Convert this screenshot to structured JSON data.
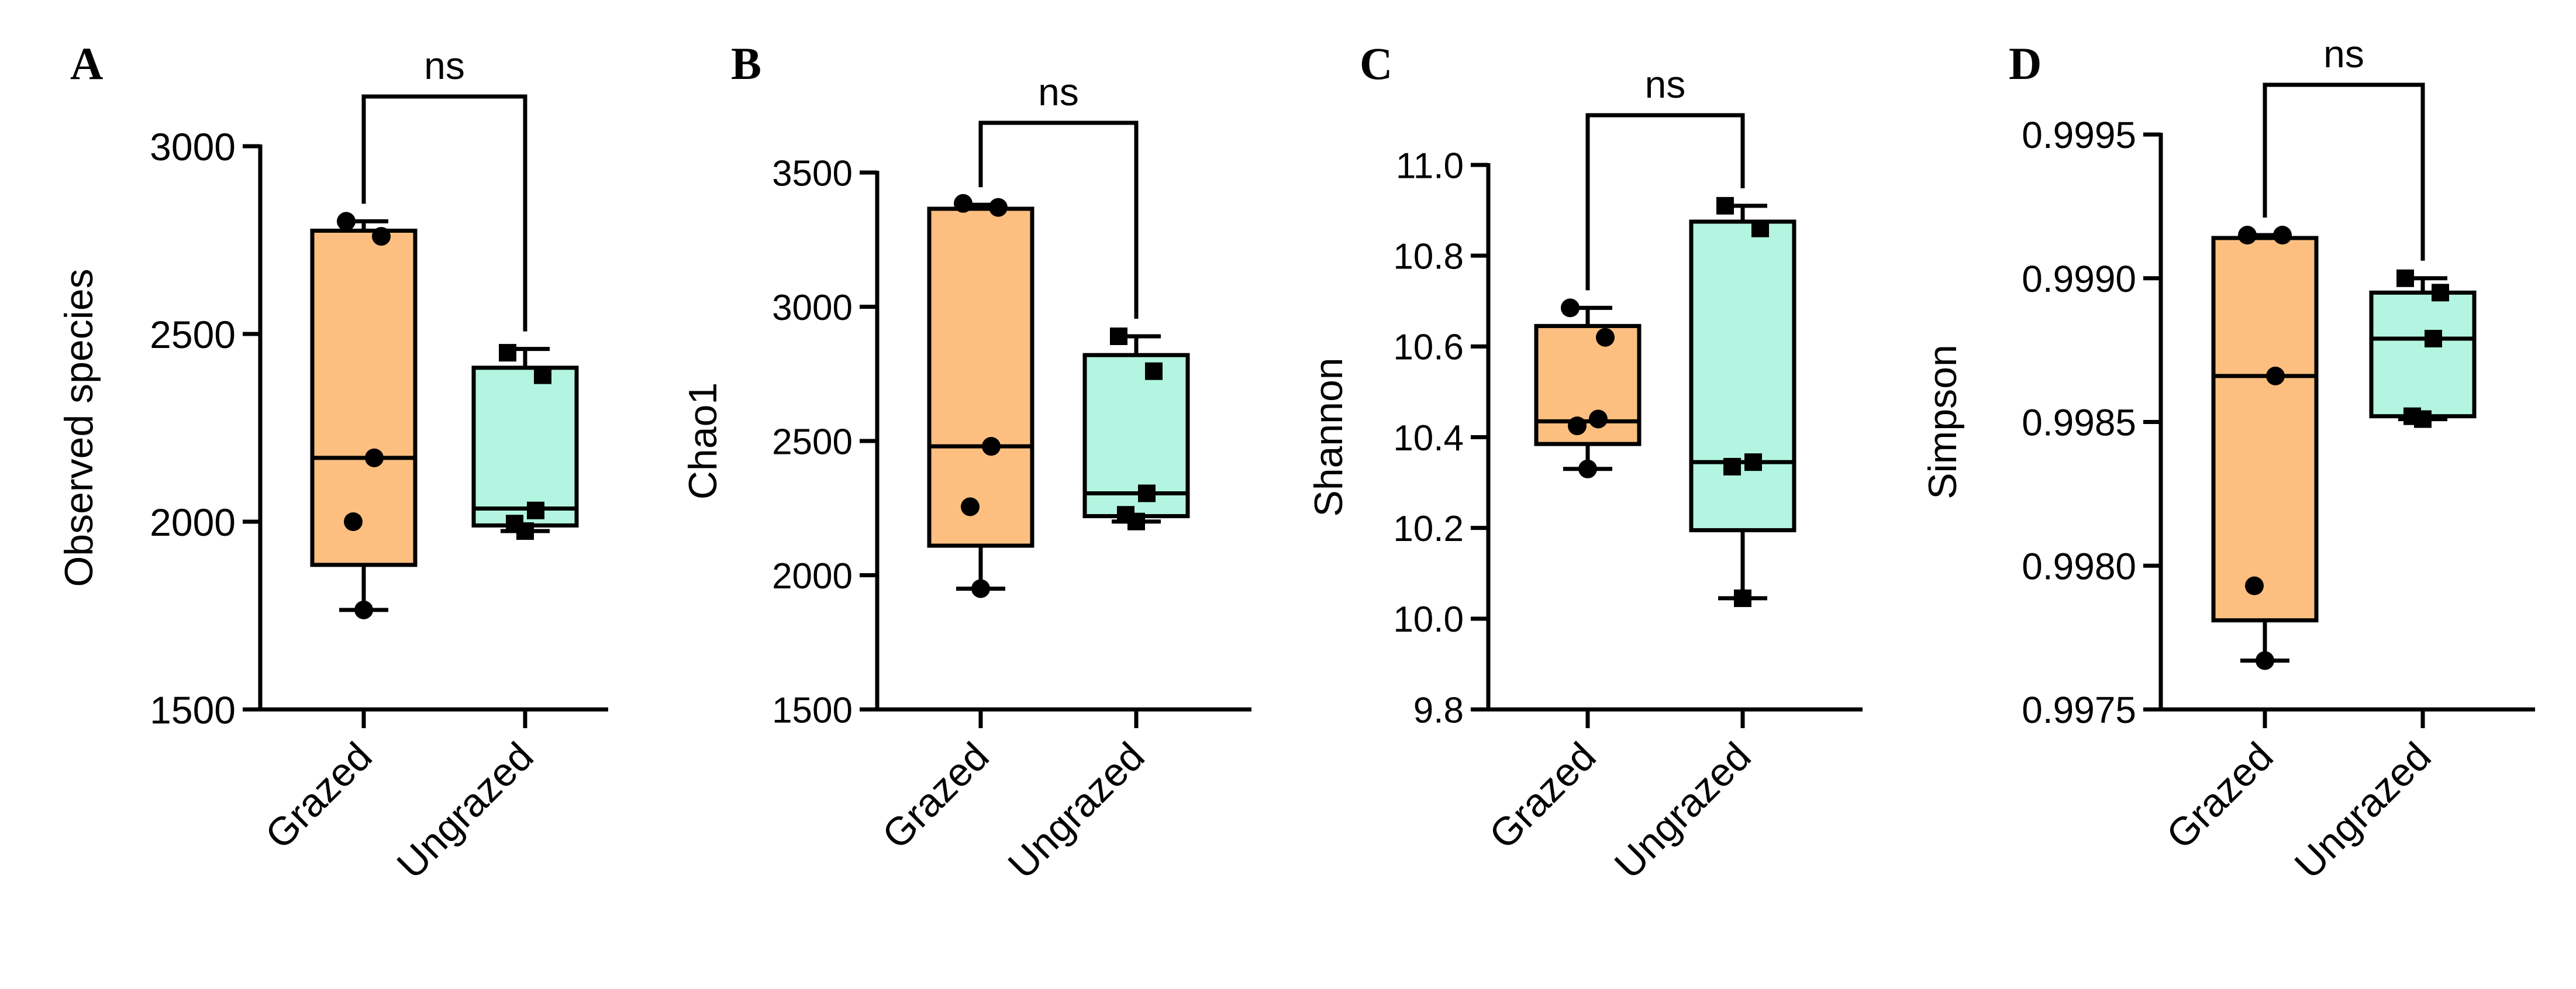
{
  "chart_data": [
    {
      "type": "box",
      "panel_label": "A",
      "ylabel": "Observed species",
      "categories": [
        "Grazed",
        "Ungrazed"
      ],
      "ylim": [
        1500,
        3000
      ],
      "yticks": [
        1500,
        2000,
        2500,
        3000
      ],
      "ytick_labels": [
        "1500",
        "2000",
        "2500",
        "3000"
      ],
      "significance": "ns",
      "groups": [
        {
          "name": "Grazed",
          "color": "#FDBF80",
          "min": 1765,
          "q1": 1885,
          "median": 2170,
          "q3": 2775,
          "max": 2800,
          "points": [
            1765,
            2000,
            2170,
            2760,
            2800
          ],
          "marker": "circle"
        },
        {
          "name": "Ungrazed",
          "color": "#B3F5E0",
          "min": 1975,
          "q1": 1990,
          "median": 2035,
          "q3": 2410,
          "max": 2460,
          "points": [
            1975,
            1995,
            2030,
            2390,
            2450
          ],
          "marker": "square"
        }
      ]
    },
    {
      "type": "box",
      "panel_label": "B",
      "ylabel": "Chao1",
      "categories": [
        "Grazed",
        "Ungrazed"
      ],
      "ylim": [
        1500,
        3500
      ],
      "yticks": [
        1500,
        2000,
        2500,
        3000,
        3500
      ],
      "ytick_labels": [
        "1500",
        "2000",
        "2500",
        "3000",
        "3500"
      ],
      "significance": "ns",
      "groups": [
        {
          "name": "Grazed",
          "color": "#FDBF80",
          "min": 1950,
          "q1": 2110,
          "median": 2480,
          "q3": 3365,
          "max": 3380,
          "points": [
            1950,
            2255,
            2480,
            3370,
            3385
          ],
          "marker": "circle"
        },
        {
          "name": "Ungrazed",
          "color": "#B3F5E0",
          "min": 2200,
          "q1": 2220,
          "median": 2305,
          "q3": 2820,
          "max": 2890,
          "points": [
            2200,
            2225,
            2305,
            2760,
            2890
          ],
          "marker": "square"
        }
      ]
    },
    {
      "type": "box",
      "panel_label": "C",
      "ylabel": "Shannon",
      "categories": [
        "Grazed",
        "Ungrazed"
      ],
      "ylim": [
        9.8,
        11.0
      ],
      "yticks": [
        9.8,
        10.0,
        10.2,
        10.4,
        10.6,
        10.8,
        11.0
      ],
      "ytick_labels": [
        "9.8",
        "10.0",
        "10.2",
        "10.4",
        "10.6",
        "10.8",
        "11.0"
      ],
      "significance": "ns",
      "groups": [
        {
          "name": "Grazed",
          "color": "#FDBF80",
          "min": 10.33,
          "q1": 10.385,
          "median": 10.435,
          "q3": 10.645,
          "max": 10.685,
          "points": [
            10.33,
            10.425,
            10.44,
            10.62,
            10.685
          ],
          "marker": "circle"
        },
        {
          "name": "Ungrazed",
          "color": "#B3F5E0",
          "min": 10.045,
          "q1": 10.195,
          "median": 10.345,
          "q3": 10.875,
          "max": 10.91,
          "points": [
            10.045,
            10.335,
            10.345,
            10.86,
            10.91
          ],
          "marker": "square"
        }
      ]
    },
    {
      "type": "box",
      "panel_label": "D",
      "ylabel": "Simpson",
      "categories": [
        "Grazed",
        "Ungrazed"
      ],
      "ylim": [
        0.9975,
        0.9995
      ],
      "yticks": [
        0.9975,
        0.998,
        0.9985,
        0.999,
        0.9995
      ],
      "ytick_labels": [
        "0.9975",
        "0.9980",
        "0.9985",
        "0.9990",
        "0.9995"
      ],
      "significance": "ns",
      "groups": [
        {
          "name": "Grazed",
          "color": "#FDBF80",
          "min": 0.99767,
          "q1": 0.99781,
          "median": 0.99866,
          "q3": 0.99914,
          "max": 0.99915,
          "points": [
            0.99767,
            0.99793,
            0.99866,
            0.99915,
            0.99915
          ],
          "marker": "circle"
        },
        {
          "name": "Ungrazed",
          "color": "#B3F5E0",
          "min": 0.99851,
          "q1": 0.99852,
          "median": 0.99879,
          "q3": 0.99895,
          "max": 0.999,
          "points": [
            0.99851,
            0.99852,
            0.99879,
            0.99895,
            0.999
          ],
          "marker": "square"
        }
      ]
    }
  ]
}
